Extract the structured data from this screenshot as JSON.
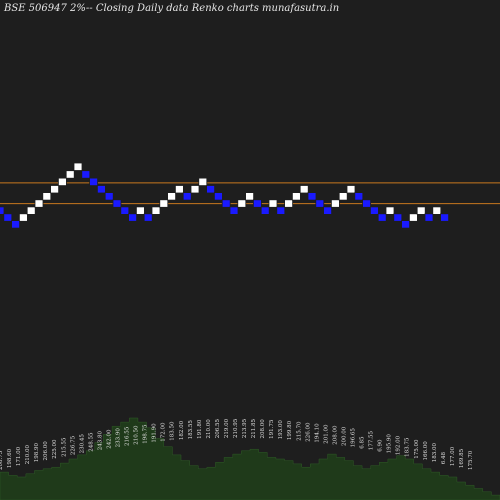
{
  "chart_data": {
    "type": "renko",
    "title": "BSE 506947 2%--  Closing Daily data  Renko  charts munafasutra.in",
    "colors": {
      "background": "#1e1e1e",
      "up_brick": "#ffffff",
      "down_brick": "#1a1aff",
      "reference_line": "#c8781e",
      "volume_area": "#1f3a1a"
    },
    "reference_levels": [
      228.6,
      215.9
    ],
    "bricks": [
      {
        "dir": "down",
        "value": 211.55
      },
      {
        "dir": "down",
        "value": 207.3
      },
      {
        "dir": "down",
        "value": 203.15
      },
      {
        "dir": "up",
        "value": 207.3
      },
      {
        "dir": "up",
        "value": 211.55
      },
      {
        "dir": "up",
        "value": 215.9
      },
      {
        "dir": "up",
        "value": 220.3
      },
      {
        "dir": "up",
        "value": 224.7
      },
      {
        "dir": "up",
        "value": 229.2
      },
      {
        "dir": "up",
        "value": 233.8
      },
      {
        "dir": "up",
        "value": 238.5
      },
      {
        "dir": "down",
        "value": 233.8
      },
      {
        "dir": "down",
        "value": 229.2
      },
      {
        "dir": "down",
        "value": 224.7
      },
      {
        "dir": "down",
        "value": 220.3
      },
      {
        "dir": "down",
        "value": 215.9
      },
      {
        "dir": "down",
        "value": 211.55
      },
      {
        "dir": "down",
        "value": 207.3
      },
      {
        "dir": "up",
        "value": 211.55
      },
      {
        "dir": "down",
        "value": 207.3
      },
      {
        "dir": "up",
        "value": 211.55
      },
      {
        "dir": "up",
        "value": 215.9
      },
      {
        "dir": "up",
        "value": 220.3
      },
      {
        "dir": "up",
        "value": 224.7
      },
      {
        "dir": "down",
        "value": 220.3
      },
      {
        "dir": "up",
        "value": 224.7
      },
      {
        "dir": "up",
        "value": 229.2
      },
      {
        "dir": "down",
        "value": 224.7
      },
      {
        "dir": "down",
        "value": 220.3
      },
      {
        "dir": "down",
        "value": 215.9
      },
      {
        "dir": "down",
        "value": 211.55
      },
      {
        "dir": "up",
        "value": 215.9
      },
      {
        "dir": "up",
        "value": 220.3
      },
      {
        "dir": "down",
        "value": 215.9
      },
      {
        "dir": "down",
        "value": 211.55
      },
      {
        "dir": "up",
        "value": 215.9
      },
      {
        "dir": "down",
        "value": 211.55
      },
      {
        "dir": "up",
        "value": 215.9
      },
      {
        "dir": "up",
        "value": 220.3
      },
      {
        "dir": "up",
        "value": 224.7
      },
      {
        "dir": "down",
        "value": 220.3
      },
      {
        "dir": "down",
        "value": 215.9
      },
      {
        "dir": "down",
        "value": 211.55
      },
      {
        "dir": "up",
        "value": 215.9
      },
      {
        "dir": "up",
        "value": 220.3
      },
      {
        "dir": "up",
        "value": 224.7
      },
      {
        "dir": "down",
        "value": 220.3
      },
      {
        "dir": "down",
        "value": 215.9
      },
      {
        "dir": "down",
        "value": 211.55
      },
      {
        "dir": "down",
        "value": 207.3
      },
      {
        "dir": "up",
        "value": 211.55
      },
      {
        "dir": "down",
        "value": 207.3
      },
      {
        "dir": "down",
        "value": 203.15
      },
      {
        "dir": "up",
        "value": 207.3
      },
      {
        "dir": "up",
        "value": 211.55
      },
      {
        "dir": "down",
        "value": 207.3
      },
      {
        "dir": "up",
        "value": 211.55
      },
      {
        "dir": "down",
        "value": 207.3
      }
    ],
    "date_labels": [
      "208.75",
      "198.60",
      "171.00",
      "210.00",
      "198.90",
      "206.00",
      "225.00",
      "215.55",
      "226.75",
      "230.45",
      "248.55",
      "243.80",
      "242.00",
      "233.90",
      "216.55",
      "210.50",
      "198.75",
      "191.90",
      "172.00",
      "183.50",
      "182.00",
      "183.55",
      "191.80",
      "210.00",
      "206.55",
      "219.00",
      "210.95",
      "213.95",
      "211.85",
      "208.00",
      "191.75",
      "193.00",
      "199.80",
      "215.70",
      "226.00",
      "194.10",
      "201.00",
      "208.00",
      "200.00",
      "196.65",
      "6.85",
      "177.55",
      "6.90",
      "195.90",
      "192.00",
      "183.75",
      "175.00",
      "166.00",
      "183.00",
      "6.48",
      "177.00",
      "169.85",
      "175.70"
    ],
    "volume_profile": [
      0.34,
      0.3,
      0.28,
      0.32,
      0.36,
      0.38,
      0.4,
      0.45,
      0.5,
      0.55,
      0.6,
      0.7,
      0.8,
      0.9,
      0.95,
      1.0,
      0.95,
      0.88,
      0.75,
      0.65,
      0.55,
      0.48,
      0.42,
      0.38,
      0.4,
      0.46,
      0.52,
      0.56,
      0.6,
      0.62,
      0.58,
      0.52,
      0.5,
      0.48,
      0.44,
      0.4,
      0.44,
      0.5,
      0.56,
      0.52,
      0.48,
      0.42,
      0.38,
      0.42,
      0.46,
      0.5,
      0.54,
      0.5,
      0.44,
      0.38,
      0.34,
      0.3,
      0.28,
      0.22,
      0.18,
      0.14,
      0.1,
      0.06
    ]
  }
}
